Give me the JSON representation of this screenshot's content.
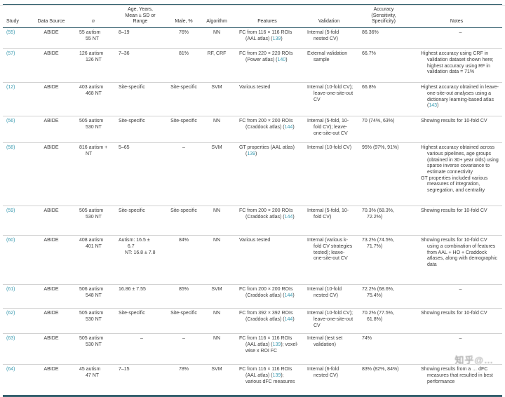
{
  "page": {
    "watermark": "知乎@…"
  },
  "table": {
    "columns": [
      "Study",
      "Data Source",
      "n",
      "Age, Years,\nMean ± SD or\nRange",
      "Male, %",
      "Algorithm",
      "Features",
      "Validation",
      "Accuracy\n(Sensitivity,\nSpecificity)",
      "Notes"
    ],
    "rows": [
      {
        "study": "(55)",
        "source": "ABIDE",
        "n": "55 autism\n55 NT",
        "age": "8–19",
        "male": "76%",
        "algorithm": "NN",
        "features": "FC from 116 × 116 ROIs (AAL atlas) ([[139]])",
        "validation": "Internal (5-fold nested CV)",
        "accuracy": "86.36%",
        "notes": "–"
      },
      {
        "study": "(57)",
        "source": "ABIDE",
        "n": "126 autism\n126 NT",
        "age": "7–36",
        "male": "81%",
        "algorithm": "RF, CRF",
        "features": "FC from 220 × 220 ROIs (Power atlas) ([[140]])",
        "validation": "External validation sample",
        "accuracy": "66.7%",
        "notes": "Highest accuracy using CRF in validation dataset shown here; highest accuracy using RF in validation data = 71%"
      },
      {
        "study": "(12)",
        "source": "ABIDE",
        "n": "403 autism\n468 NT",
        "age": "Site-specific",
        "male": "Site-specific",
        "algorithm": "SVM",
        "features": "Various tested",
        "validation": "Internal (10-fold CV); leave-one-site-out CV",
        "accuracy": "66.8%",
        "notes": "Highest accuracy obtained in leave-one-site-out analyses using a dictionary learning-based atlas ([[143]])"
      },
      {
        "study": "(56)",
        "source": "ABIDE",
        "n": "505 autism\n530 NT",
        "age": "Site-specific",
        "male": "Site-specific",
        "algorithm": "NN",
        "features": "FC from 200 × 200 ROIs (Craddock atlas) ([[144]])",
        "validation": "Internal (5-fold, 10-fold CV); leave-one-site-out CV",
        "accuracy": "70 (74%, 63%)",
        "notes": "Showing results for 10-fold CV"
      },
      {
        "study": "(58)",
        "source": "ABIDE",
        "n": "816 autism +\nNT",
        "age": "5–65",
        "male": "–",
        "algorithm": "SVM",
        "features": "GT properties (AAL atlas) ([[139]])",
        "validation": "Internal (10-fold CV)",
        "accuracy": "95% (97%, 91%)",
        "notes": [
          "Highest accuracy obtained across various pipelines, age groups (obtained in 30+ year olds) using sparse inverse covariance to estimate connectivity",
          "GT properties included various measures of integration, segregation, and centrality"
        ]
      },
      {
        "study": "(59)",
        "source": "ABIDE",
        "n": "505 autism\n530 NT",
        "age": "Site-specific",
        "male": "Site-specific",
        "algorithm": "NN",
        "features": "FC from 200 × 200 ROIs (Craddock atlas) ([[144]])",
        "validation": "Internal (5-fold, 10-fold CV)",
        "accuracy": "70.3% (68.3%, 72.2%)",
        "notes": "Showing results for 10-fold CV"
      },
      {
        "study": "(60)",
        "source": "ABIDE",
        "n": "408 autism\n401 NT",
        "age": "Autism: 16.5 ±\n  6.7\nNT: 16.8 ± 7.8",
        "male": "84%",
        "algorithm": "NN",
        "features": "Various tested",
        "validation": "Internal (various k-fold CV strategies tested); leave-one-site-out CV",
        "accuracy": "73.2% (74.5%, 71.7%)",
        "notes": "Showing results for 10-fold CV using a combination of features from AAL + HO + Craddock atlases, along with demographic data"
      },
      {
        "study": "(61)",
        "source": "ABIDE",
        "n": "506 autism\n548 NT",
        "age": "16.86 ± 7.55",
        "male": "85%",
        "algorithm": "SVM",
        "features": "FC from 200 × 200 ROIs (Craddock atlas) ([[144]])",
        "validation": "Internal (10-fold nested CV)",
        "accuracy": "72.2% (68.6%, 75.4%)",
        "notes": "–"
      },
      {
        "study": "(62)",
        "source": "ABIDE",
        "n": "505 autism\n530 NT",
        "age": "Site-specific",
        "male": "Site-specific",
        "algorithm": "NN",
        "features": "FC from 392 × 392 ROIs (Craddock atlas) ([[144]])",
        "validation": "Internal (10-fold CV); leave-one-site-out CV",
        "accuracy": "70.2% (77.5%, 61.8%)",
        "notes": "Showing results for 10-fold CV"
      },
      {
        "study": "(63)",
        "source": "ABIDE",
        "n": "505 autism\n530 NT",
        "age": "–",
        "male": "–",
        "algorithm": "NN",
        "features": "FC from 116 × 116 ROIs (AAL atlas) ([[139]]); voxel-wise x ROI FC",
        "validation": "Internal (test set validation)",
        "accuracy": "74%",
        "notes": "–"
      },
      {
        "study": "(64)",
        "source": "ABIDE",
        "n": "45 autism\n47 NT",
        "age": "7–15",
        "male": "78%",
        "algorithm": "SVM",
        "features": "FC from 116 × 116 ROIs (AAL atlas) ([[139]]); various dFC measures",
        "validation": "Internal (6-fold nested CV)",
        "accuracy": "83% (82%, 84%)",
        "notes": "Showing results from a … dFC measures that resulted in best performance"
      }
    ]
  }
}
